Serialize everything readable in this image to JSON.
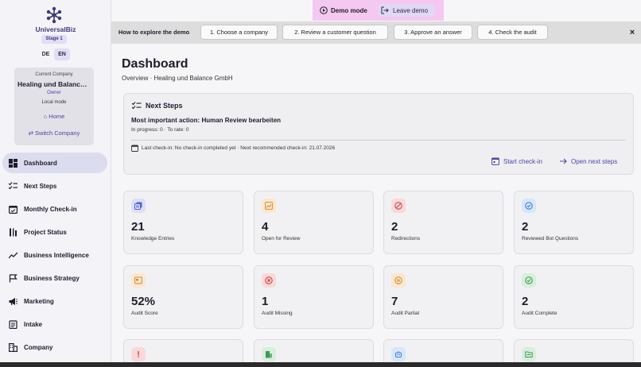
{
  "sidebar": {
    "brand": "UniversalBiz",
    "stage": "Stage 1",
    "languages": [
      "DE",
      "EN"
    ],
    "company_card": {
      "label": "Current Company",
      "name": "Healing und Balance GmbH",
      "role": "Owner",
      "mode": "Local mode",
      "home": "Home",
      "switch": "Switch Company"
    },
    "nav": [
      {
        "label": "Dashboard",
        "icon": "dashboard-icon",
        "active": true
      },
      {
        "label": "Next Steps",
        "icon": "checklist-icon"
      },
      {
        "label": "Monthly Check-in",
        "icon": "calendar-check-icon"
      },
      {
        "label": "Project Status",
        "icon": "project-status-icon"
      },
      {
        "label": "Business Intelligence",
        "icon": "trend-icon"
      },
      {
        "label": "Business Strategy",
        "icon": "flag-icon"
      },
      {
        "label": "Marketing",
        "icon": "megaphone-icon"
      },
      {
        "label": "Intake",
        "icon": "clipboard-icon"
      },
      {
        "label": "Company",
        "icon": "building-icon"
      }
    ]
  },
  "demo": {
    "mode_label": "Demo mode",
    "leave_label": "Leave demo"
  },
  "explore": {
    "title": "How to explore the demo",
    "steps": [
      "1. Choose a company",
      "2. Review a customer question",
      "3. Approve an answer",
      "4. Check the audit"
    ],
    "close": "×"
  },
  "main": {
    "title": "Dashboard",
    "subtitle": "Overview · Healing und Balance GmbH",
    "next_steps": {
      "title": "Next Steps",
      "action": "Most important action: Human Review bearbeiten",
      "progress": "In progress: 0 · To rate: 0",
      "checkin": "Last check-in: No check-in completed yet · Next recommended check-in: 21.07.2026",
      "start_checkin": "Start check-in",
      "open_next_steps": "Open next steps"
    },
    "stats": [
      {
        "value": "21",
        "label": "Knowledge Entries",
        "icon": "book-icon",
        "color": "#4f5fd0",
        "bg": "#dcdff6"
      },
      {
        "value": "4",
        "label": "Open for Review",
        "icon": "image-review-icon",
        "color": "#d68a2e",
        "bg": "#fbe7cf"
      },
      {
        "value": "2",
        "label": "Redirections",
        "icon": "block-icon",
        "color": "#d04444",
        "bg": "#f8d9d9"
      },
      {
        "value": "2",
        "label": "Reviewed Bot Questions",
        "icon": "verified-icon",
        "color": "#3d7fd6",
        "bg": "#d8e6f8"
      },
      {
        "value": "52%",
        "label": "Audit Score",
        "icon": "score-icon",
        "color": "#d68a2e",
        "bg": "#fbe7cf"
      },
      {
        "value": "1",
        "label": "Audit Missing",
        "icon": "x-circle-icon",
        "color": "#d04444",
        "bg": "#f8d9d9"
      },
      {
        "value": "7",
        "label": "Audit Partial",
        "icon": "minus-circle-icon",
        "color": "#d68a2e",
        "bg": "#fbe7cf"
      },
      {
        "value": "2",
        "label": "Audit Complete",
        "icon": "check-circle-icon",
        "color": "#3f9a55",
        "bg": "#d8efdc"
      }
    ],
    "bottom_icons": [
      {
        "icon": "alert-icon",
        "color": "#d04444",
        "bg": "#f8d9d9"
      },
      {
        "icon": "building-icon",
        "color": "#3f9a55",
        "bg": "#d8efdc"
      },
      {
        "icon": "bot-icon",
        "color": "#3d7fd6",
        "bg": "#d8e6f8"
      },
      {
        "icon": "folder-icon",
        "color": "#3f9a55",
        "bg": "#d8efdc"
      }
    ]
  }
}
